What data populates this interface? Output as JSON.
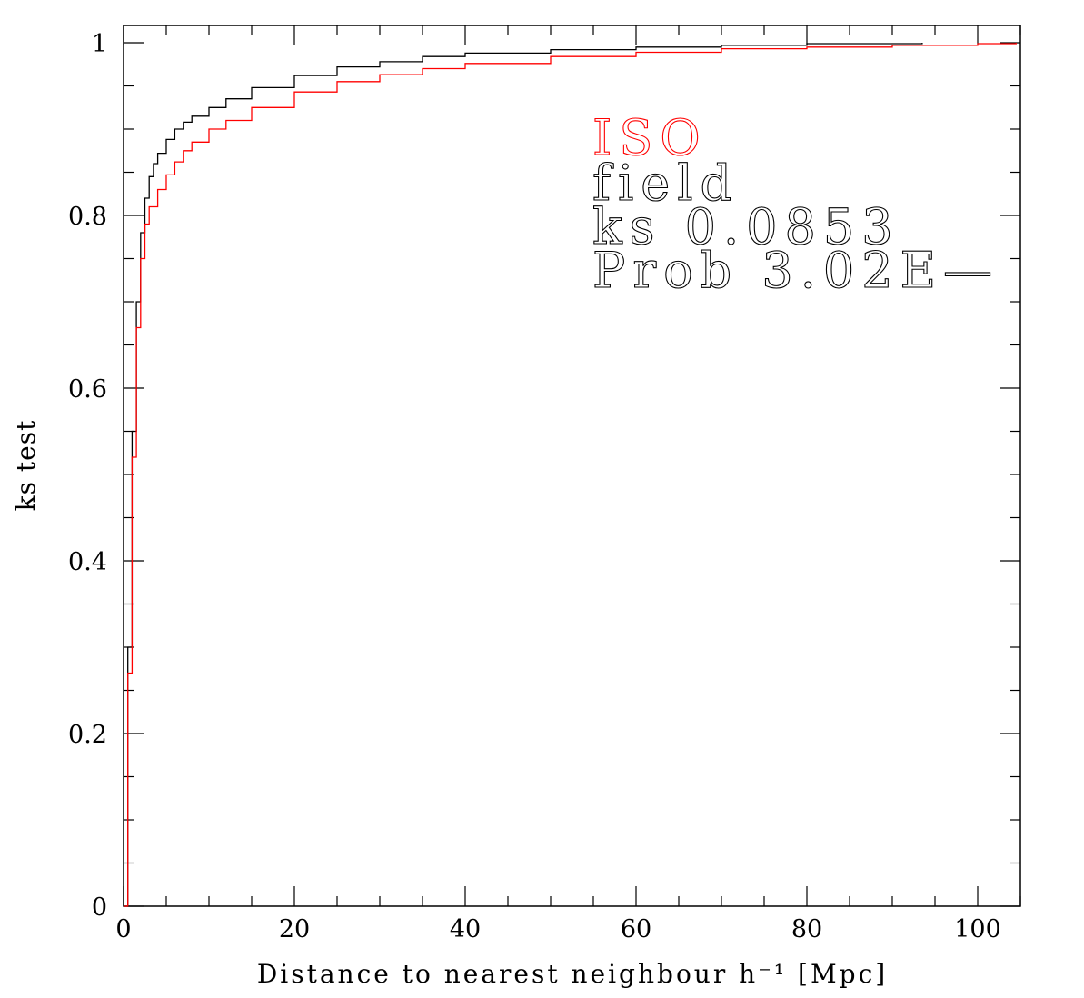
{
  "chart_data": {
    "type": "line",
    "title": "",
    "xlabel": "Distance to nearest neighbour h⁻¹ [Mpc]",
    "ylabel": "ks test",
    "xlim": [
      0,
      105
    ],
    "ylim": [
      0,
      1.02
    ],
    "grid": false,
    "x_ticks": [
      0,
      20,
      40,
      60,
      80,
      100
    ],
    "x_tick_labels": [
      "0",
      "20",
      "40",
      "60",
      "80",
      "100"
    ],
    "y_ticks": [
      0,
      0.2,
      0.4,
      0.6,
      0.8,
      1
    ],
    "y_tick_labels": [
      "0",
      "0.2",
      "0.4",
      "0.6",
      "0.8",
      "1"
    ],
    "series": [
      {
        "name": "field",
        "color": "#000000",
        "x": [
          0,
          0.5,
          1,
          1.5,
          2,
          2.5,
          3,
          3.5,
          4,
          5,
          6,
          7,
          8,
          10,
          12,
          15,
          20,
          25,
          30,
          35,
          40,
          50,
          60,
          70,
          80,
          93.5
        ],
        "y": [
          0,
          0.3,
          0.55,
          0.7,
          0.78,
          0.82,
          0.845,
          0.86,
          0.872,
          0.888,
          0.9,
          0.908,
          0.915,
          0.925,
          0.935,
          0.948,
          0.962,
          0.972,
          0.978,
          0.984,
          0.988,
          0.992,
          0.995,
          0.997,
          0.999,
          1.0
        ]
      },
      {
        "name": "ISO",
        "color": "#ff0000",
        "x": [
          0,
          0.5,
          1,
          1.5,
          2,
          2.5,
          3,
          4,
          5,
          6,
          7,
          8,
          10,
          12,
          15,
          20,
          25,
          30,
          35,
          40,
          50,
          60,
          70,
          80,
          90,
          100,
          104.5
        ],
        "y": [
          0,
          0.27,
          0.52,
          0.67,
          0.75,
          0.79,
          0.81,
          0.83,
          0.847,
          0.862,
          0.875,
          0.885,
          0.9,
          0.91,
          0.925,
          0.943,
          0.955,
          0.963,
          0.97,
          0.976,
          0.984,
          0.989,
          0.993,
          0.995,
          0.997,
          0.999,
          1.0
        ]
      }
    ],
    "annotations": [
      {
        "text": "ISO",
        "color": "#ff0000"
      },
      {
        "text": "field",
        "color": "#000000"
      },
      {
        "text": "ks  0.0853",
        "color": "#000000"
      },
      {
        "text": "Prob 3.02E—",
        "color": "#000000"
      }
    ]
  }
}
